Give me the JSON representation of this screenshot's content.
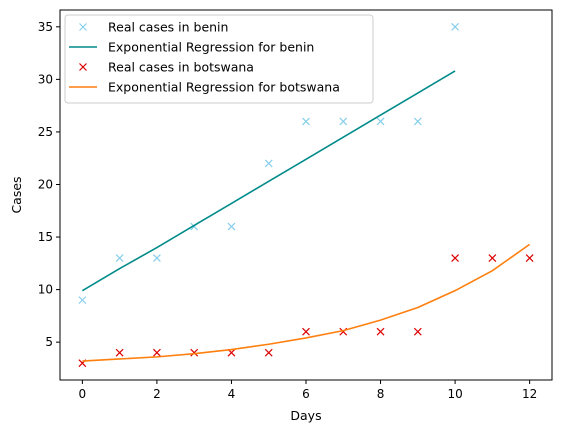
{
  "chart_data": {
    "type": "line",
    "xlabel": "Days",
    "ylabel": "Cases",
    "xlim": [
      -0.6,
      12.6
    ],
    "ylim": [
      1.4,
      36.6
    ],
    "x_ticks": [
      0,
      2,
      4,
      6,
      8,
      10,
      12
    ],
    "y_ticks": [
      5,
      10,
      15,
      20,
      25,
      30,
      35
    ],
    "grid": false,
    "legend_position": "top-left",
    "series": [
      {
        "name": "Real cases in benin",
        "kind": "scatter",
        "marker": "x",
        "color": "#87ceeb",
        "x": [
          0,
          1,
          2,
          3,
          4,
          5,
          6,
          7,
          8,
          9,
          10
        ],
        "y": [
          9,
          13,
          13,
          16,
          16,
          22,
          26,
          26,
          26,
          26,
          35
        ]
      },
      {
        "name": "Exponential Regression for benin",
        "kind": "line",
        "color": "#008b8b",
        "x": [
          0,
          1,
          2,
          3,
          4,
          5,
          6,
          7,
          8,
          9,
          10
        ],
        "y": [
          9.9,
          12.0,
          14.0,
          16.1,
          18.2,
          20.3,
          22.4,
          24.5,
          26.6,
          28.7,
          30.8
        ]
      },
      {
        "name": "Real cases in botswana",
        "kind": "scatter",
        "marker": "x",
        "color": "#dd0000",
        "x": [
          0,
          1,
          2,
          3,
          4,
          5,
          6,
          7,
          8,
          9,
          10,
          11,
          12
        ],
        "y": [
          3,
          4,
          4,
          4,
          4,
          4,
          6,
          6,
          6,
          6,
          13,
          13,
          13
        ]
      },
      {
        "name": "Exponential Regression for botswana",
        "kind": "line",
        "color": "#ff7f0e",
        "x": [
          0,
          1,
          2,
          3,
          4,
          5,
          6,
          7,
          8,
          9,
          10,
          11,
          12
        ],
        "y": [
          3.2,
          3.4,
          3.6,
          3.9,
          4.3,
          4.8,
          5.4,
          6.1,
          7.1,
          8.3,
          9.9,
          11.8,
          14.3
        ]
      }
    ]
  }
}
